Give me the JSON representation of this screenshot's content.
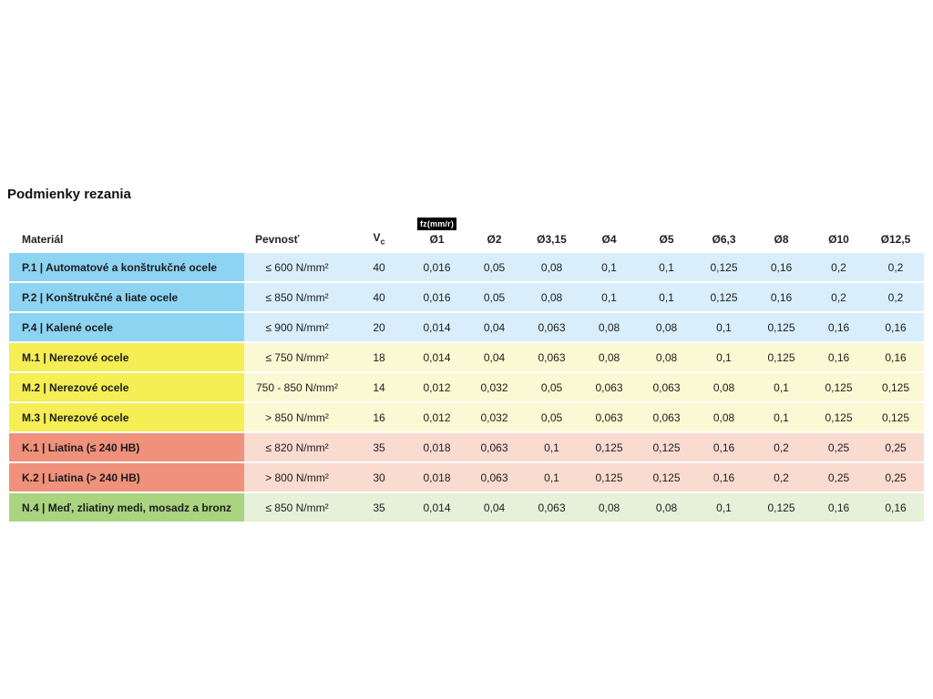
{
  "page": {
    "title": "Podmienky rezania"
  },
  "table": {
    "unit_badge": "fz(mm/r)",
    "headers": {
      "material": "Materiál",
      "strength": "Pevnosť",
      "vc": "V",
      "vc_sub": "c",
      "diameters": [
        "Ø1",
        "Ø2",
        "Ø3,15",
        "Ø4",
        "Ø5",
        "Ø6,3",
        "Ø8",
        "Ø10",
        "Ø12,5"
      ]
    },
    "group_colors": {
      "P": {
        "label": "#8dd4f3",
        "body": "#d8effb"
      },
      "M": {
        "label": "#f5ee54",
        "body": "#fbf9d3"
      },
      "K": {
        "label": "#f0917c",
        "body": "#fadbd0"
      },
      "N": {
        "label": "#aad480",
        "body": "#e5f1d8"
      }
    },
    "rows": [
      {
        "group": "P",
        "material": "P.1 | Automatové a konštrukčné ocele",
        "strength": "≤ 600 N/mm²",
        "vc": "40",
        "fz": [
          "0,016",
          "0,05",
          "0,08",
          "0,1",
          "0,1",
          "0,125",
          "0,16",
          "0,2",
          "0,2"
        ]
      },
      {
        "group": "P",
        "material": "P.2 | Konštrukčné a liate ocele",
        "strength": "≤ 850 N/mm²",
        "vc": "40",
        "fz": [
          "0,016",
          "0,05",
          "0,08",
          "0,1",
          "0,1",
          "0,125",
          "0,16",
          "0,2",
          "0,2"
        ]
      },
      {
        "group": "P",
        "material": "P.4 | Kalené ocele",
        "strength": "≤ 900 N/mm²",
        "vc": "20",
        "fz": [
          "0,014",
          "0,04",
          "0,063",
          "0,08",
          "0,08",
          "0,1",
          "0,125",
          "0,16",
          "0,16"
        ]
      },
      {
        "group": "M",
        "material": "M.1 | Nerezové ocele",
        "strength": "≤ 750 N/mm²",
        "vc": "18",
        "fz": [
          "0,014",
          "0,04",
          "0,063",
          "0,08",
          "0,08",
          "0,1",
          "0,125",
          "0,16",
          "0,16"
        ]
      },
      {
        "group": "M",
        "material": "M.2 | Nerezové ocele",
        "strength": "750 - 850 N/mm²",
        "vc": "14",
        "fz": [
          "0,012",
          "0,032",
          "0,05",
          "0,063",
          "0,063",
          "0,08",
          "0,1",
          "0,125",
          "0,125"
        ]
      },
      {
        "group": "M",
        "material": "M.3 | Nerezové ocele",
        "strength": "> 850 N/mm²",
        "vc": "16",
        "fz": [
          "0,012",
          "0,032",
          "0,05",
          "0,063",
          "0,063",
          "0,08",
          "0,1",
          "0,125",
          "0,125"
        ]
      },
      {
        "group": "K",
        "material": "K.1 | Liatina (≤ 240 HB)",
        "strength": "≤ 820 N/mm²",
        "vc": "35",
        "fz": [
          "0,018",
          "0,063",
          "0,1",
          "0,125",
          "0,125",
          "0,16",
          "0,2",
          "0,25",
          "0,25"
        ]
      },
      {
        "group": "K",
        "material": "K.2 | Liatina (> 240 HB)",
        "strength": "> 800 N/mm²",
        "vc": "30",
        "fz": [
          "0,018",
          "0,063",
          "0,1",
          "0,125",
          "0,125",
          "0,16",
          "0,2",
          "0,25",
          "0,25"
        ]
      },
      {
        "group": "N",
        "material": "N.4 | Meď, zliatiny medi, mosadz a bronz",
        "strength": "≤ 850 N/mm²",
        "vc": "35",
        "fz": [
          "0,014",
          "0,04",
          "0,063",
          "0,08",
          "0,08",
          "0,1",
          "0,125",
          "0,16",
          "0,16"
        ]
      }
    ]
  }
}
